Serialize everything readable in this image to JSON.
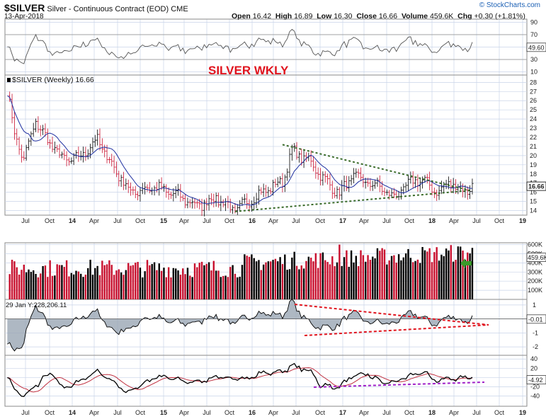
{
  "header": {
    "symbol": "$SILVER",
    "description": "Silver - Continuous Contract (EOD)",
    "exchange": "CME",
    "date": "13-Apr-2018",
    "open_label": "Open",
    "open": "16.42",
    "high_label": "High",
    "high": "16.89",
    "low_label": "Low",
    "low": "16.30",
    "close_label": "Close",
    "close": "16.66",
    "volume_label": "Volume",
    "volume": "459.6K",
    "chg_label": "Chg",
    "chg": "+0.30 (+1.81%)",
    "credit": "© StockCharts.com"
  },
  "annotation": "SILVER WKLY",
  "main_legend": "$SILVER (Weekly) 16.66",
  "indicator_readout": "29 Jan Y:228,206.11",
  "colors": {
    "up_bar": "#000000",
    "down_bar": "#c8102e",
    "ma_line": "#1e2fa0",
    "triangle_lines": "#3a6b2a",
    "red_trend": "#e0141e",
    "purple_trend": "#a020c8",
    "signal_line": "#c03040",
    "arrow": "#3a9a2a",
    "grid": "#c9d4e8"
  },
  "chart_data": {
    "type": "candlestick",
    "x_tick_labels": [
      "Jul",
      "Oct",
      "14",
      "Apr",
      "Jul",
      "Oct",
      "15",
      "Apr",
      "Jul",
      "Oct",
      "16",
      "Apr",
      "Jul",
      "Oct",
      "17",
      "Apr",
      "Jul",
      "Oct",
      "18",
      "Apr",
      "Jul",
      "Oct",
      "19"
    ],
    "weekly_close_anchors": [
      {
        "t": 0,
        "v": 27.0
      },
      {
        "t": 3,
        "v": 22.5
      },
      {
        "t": 7,
        "v": 19.5
      },
      {
        "t": 12,
        "v": 23.8
      },
      {
        "t": 16,
        "v": 22.0
      },
      {
        "t": 24,
        "v": 19.5
      },
      {
        "t": 30,
        "v": 19.7
      },
      {
        "t": 38,
        "v": 21.8
      },
      {
        "t": 44,
        "v": 19.0
      },
      {
        "t": 52,
        "v": 16.0
      },
      {
        "t": 62,
        "v": 16.6
      },
      {
        "t": 72,
        "v": 15.6
      },
      {
        "t": 80,
        "v": 14.5
      },
      {
        "t": 88,
        "v": 15.4
      },
      {
        "t": 96,
        "v": 14.0
      },
      {
        "t": 106,
        "v": 15.8
      },
      {
        "t": 116,
        "v": 17.2
      },
      {
        "t": 120,
        "v": 20.5
      },
      {
        "t": 128,
        "v": 19.3
      },
      {
        "t": 134,
        "v": 17.2
      },
      {
        "t": 140,
        "v": 15.9
      },
      {
        "t": 146,
        "v": 17.8
      },
      {
        "t": 152,
        "v": 17.0
      },
      {
        "t": 158,
        "v": 16.5
      },
      {
        "t": 162,
        "v": 15.4
      },
      {
        "t": 168,
        "v": 16.5
      },
      {
        "t": 172,
        "v": 17.5
      },
      {
        "t": 178,
        "v": 16.8
      },
      {
        "t": 182,
        "v": 15.9
      },
      {
        "t": 186,
        "v": 17.2
      },
      {
        "t": 190,
        "v": 16.4
      },
      {
        "t": 194,
        "v": 16.3
      },
      {
        "t": 196,
        "v": 16.66
      }
    ],
    "price_axis": {
      "min": 13.5,
      "max": 28.8,
      "ticks": [
        14,
        15,
        16,
        17,
        18,
        19,
        20,
        21,
        22,
        23,
        24,
        25,
        26,
        27,
        28
      ],
      "last_label": "16.66"
    },
    "top_panel": {
      "min": 5,
      "max": 95,
      "ticks": [
        10,
        30,
        50,
        70,
        90
      ],
      "value_label": "49.60"
    },
    "volume_panel": {
      "min": 0,
      "max": 620000,
      "tick_labels": [
        "100K",
        "200K",
        "300K",
        "400K",
        "500K",
        "600K"
      ],
      "tick_values": [
        100000,
        200000,
        300000,
        400000,
        500000,
        600000
      ],
      "last_label": "459.6K"
    },
    "oscillator_panel": {
      "min": -2.6,
      "max": 1.4,
      "tick_labels": [
        "-2",
        "-1",
        "0",
        "1"
      ],
      "tick_values": [
        -2,
        -1,
        0,
        1
      ],
      "last_label": "-0.01"
    },
    "momentum_panel": {
      "min": -62,
      "max": 48,
      "ticks": [
        -40,
        -20,
        0,
        20,
        40
      ],
      "last_label": "-4.92"
    },
    "triangle": {
      "upper": [
        {
          "t": 117,
          "v": 21.2
        },
        {
          "t": 196,
          "v": 16.2
        }
      ],
      "lower": [
        {
          "t": 97,
          "v": 13.9
        },
        {
          "t": 196,
          "v": 16.2
        }
      ]
    }
  }
}
